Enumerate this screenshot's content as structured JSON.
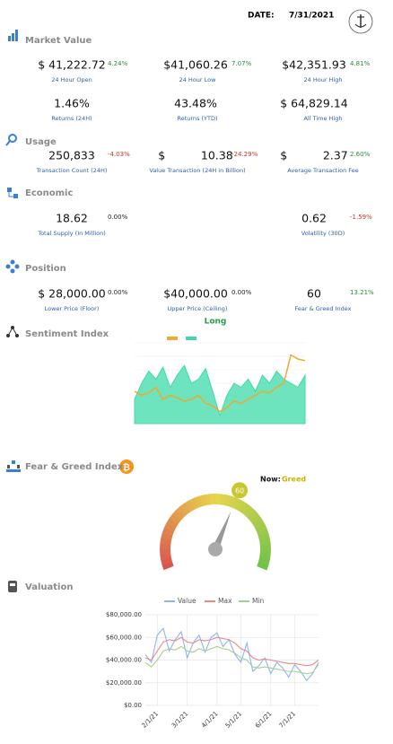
{
  "header": {
    "date_label": "DATE:",
    "date": "7/31/2021"
  },
  "sections": [
    {
      "title": "Market Value",
      "rows": [
        [
          {
            "value": "$ 41,222.72",
            "change": "4.24%",
            "label": "24 Hour Open"
          },
          {
            "value": "$41,060.26",
            "change": "7.07%",
            "label": "24 Hour Low"
          },
          {
            "value": "$42,351.93",
            "change": "4.81%",
            "label": "24 Hour High"
          }
        ],
        [
          {
            "value": "1.46%",
            "label": "Returns (24H)"
          },
          {
            "value": "43.48%",
            "label": "Returns (YTD)"
          },
          {
            "value": "$ 64,829.14",
            "label": "All Time High"
          }
        ]
      ]
    },
    {
      "title": "Usage",
      "rows": [
        [
          {
            "value": "250,833",
            "change": "-4.03%",
            "label": "Transaction Count (24H)"
          },
          {
            "value": "$          10.38",
            "change": "-24.29%",
            "label": "Value Transaction (24H in Billion)"
          },
          {
            "value": "$          2.37",
            "change": "2.60%",
            "label": "Average Transaction Fee"
          }
        ]
      ]
    },
    {
      "title": "Economic",
      "rows": [
        [
          {
            "value": "18.62",
            "change": "0.00%",
            "label": "Total Supply (In Million)"
          },
          {
            "value": "0.62",
            "change": "-1.59%",
            "label": "Volatility (30D)"
          }
        ]
      ]
    },
    {
      "title": "Position",
      "rows": [
        [
          {
            "value": "$ 28,000.00",
            "change": "0.00%",
            "label": "Lower Price (Floor)"
          },
          {
            "value": "$40,000.00",
            "change": "0.00%",
            "label": "Upper Price (Ceiling)"
          },
          {
            "value": "60",
            "change": "13.21%",
            "label": "Fear & Greed Index"
          }
        ]
      ]
    }
  ],
  "chart_data": [
    {
      "type": "area",
      "title": "Sentiment Index",
      "subtitle": "Long",
      "ylim": [
        0,
        100
      ],
      "series": [
        {
          "color": "#3ddba8",
          "values": [
            30,
            50,
            65,
            55,
            70,
            45,
            60,
            72,
            50,
            55,
            68,
            40,
            10,
            35,
            50,
            45,
            55,
            40,
            60,
            50,
            65,
            55,
            50,
            45,
            60
          ]
        },
        {
          "color": "#f0a830",
          "values": [
            40,
            35,
            38,
            45,
            30,
            35,
            32,
            28,
            30,
            35,
            25,
            22,
            15,
            20,
            28,
            25,
            30,
            35,
            40,
            38,
            45,
            50,
            85,
            80,
            78
          ]
        }
      ]
    },
    {
      "type": "gauge",
      "title": "Fear & Greed Index",
      "now_label": "Now:",
      "status": "Greed",
      "value": 60,
      "range": [
        0,
        100
      ]
    },
    {
      "type": "line",
      "title": "Valuation",
      "categories": [
        null,
        null,
        "2/1/21",
        null,
        null,
        null,
        null,
        "3/1/21",
        null,
        null,
        null,
        null,
        "4/1/21",
        null,
        null,
        null,
        "5/1/21",
        null,
        null,
        null,
        null,
        "6/1/21",
        null,
        null,
        null,
        "7/1/21",
        null,
        null,
        null,
        null
      ],
      "ylim": [
        0,
        80000
      ],
      "yticks": [
        {
          "value": 0,
          "label": "$0.00"
        },
        {
          "value": 20000,
          "label": "$20,000.00"
        },
        {
          "value": 40000,
          "label": "$40,000.00"
        },
        {
          "value": 60000,
          "label": "$60,000.00"
        },
        {
          "value": 80000,
          "label": "$80,000.00"
        }
      ],
      "grid": true,
      "series": [
        {
          "name": "Value",
          "color": "#8fb4ef",
          "values": [
            45000,
            38000,
            62000,
            68000,
            48000,
            58000,
            65000,
            42000,
            55000,
            62000,
            47000,
            60000,
            64000,
            52000,
            58000,
            45000,
            38000,
            55000,
            30000,
            35000,
            42000,
            28000,
            38000,
            33000,
            25000,
            36000,
            30000,
            22000,
            28000,
            38000
          ]
        },
        {
          "name": "Max",
          "color": "#e88a84",
          "values": [
            42000,
            40000,
            48000,
            56000,
            58000,
            57000,
            60000,
            56000,
            55000,
            58000,
            57000,
            58000,
            60000,
            59000,
            58000,
            55000,
            50000,
            48000,
            42000,
            40000,
            41000,
            40000,
            39000,
            38000,
            37000,
            37000,
            36000,
            35000,
            36000,
            40000
          ]
        },
        {
          "name": "Min",
          "color": "#a8d08d",
          "values": [
            38000,
            34000,
            40000,
            48000,
            50000,
            49000,
            52000,
            48000,
            47000,
            50000,
            48000,
            50000,
            52000,
            50000,
            49000,
            46000,
            42000,
            40000,
            34000,
            33000,
            34000,
            33000,
            32000,
            31000,
            30000,
            30000,
            29000,
            28000,
            29000,
            36000
          ]
        }
      ]
    }
  ]
}
